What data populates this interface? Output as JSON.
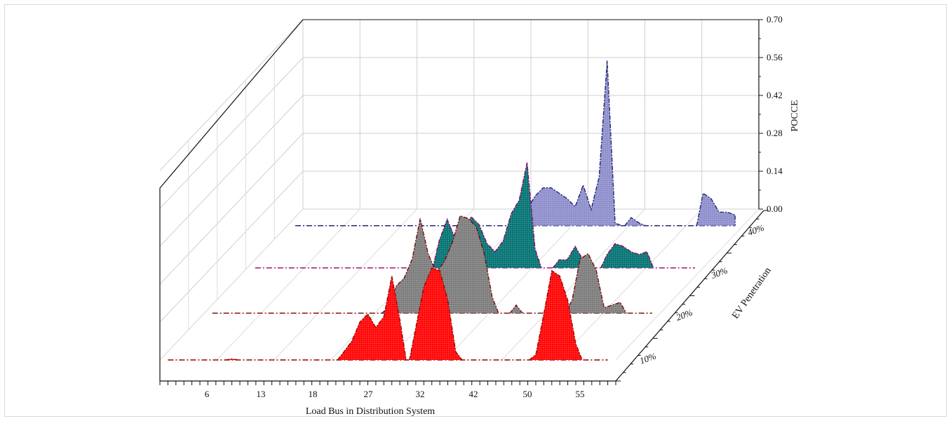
{
  "chart_data": {
    "type": "area",
    "xlabel": "Load Bus in Distribution System",
    "ylabel": "EV Penetration",
    "zlabel": "POCCE",
    "x_ticks": [
      "6",
      "13",
      "18",
      "27",
      "32",
      "42",
      "50",
      "55"
    ],
    "z_ticks": [
      "0.00",
      "0.14",
      "0.28",
      "0.42",
      "0.56",
      "0.70"
    ],
    "zlim": [
      0,
      0.7
    ],
    "grid": true,
    "series": [
      {
        "name": "10%",
        "color": "#ff0000",
        "line_color": "#990000",
        "values": [
          [
            1,
            0
          ],
          [
            2,
            0
          ],
          [
            3,
            0
          ],
          [
            4,
            0
          ],
          [
            5,
            0
          ],
          [
            6,
            0
          ],
          [
            7,
            0
          ],
          [
            8,
            0
          ],
          [
            9,
            0.004
          ],
          [
            10,
            0
          ],
          [
            11,
            0
          ],
          [
            12,
            0
          ],
          [
            13,
            0
          ],
          [
            14,
            0
          ],
          [
            15,
            0
          ],
          [
            16,
            0
          ],
          [
            17,
            0
          ],
          [
            18,
            0
          ],
          [
            19,
            0
          ],
          [
            20,
            0
          ],
          [
            21,
            0
          ],
          [
            22,
            0
          ],
          [
            23,
            0.03
          ],
          [
            24,
            0.07
          ],
          [
            25,
            0.14
          ],
          [
            26,
            0.17
          ],
          [
            27,
            0.12
          ],
          [
            28,
            0.16
          ],
          [
            29,
            0.31
          ],
          [
            30,
            0.15
          ],
          [
            31,
            0
          ],
          [
            32,
            0.12
          ],
          [
            33,
            0.27
          ],
          [
            34,
            0.34
          ],
          [
            35,
            0.33
          ],
          [
            36,
            0.22
          ],
          [
            37,
            0.03
          ],
          [
            38,
            0
          ],
          [
            39,
            0
          ],
          [
            40,
            0
          ],
          [
            41,
            0
          ],
          [
            42,
            0
          ],
          [
            43,
            0
          ],
          [
            44,
            0
          ],
          [
            45,
            0
          ],
          [
            46,
            0
          ],
          [
            47,
            0.02
          ],
          [
            48,
            0.17
          ],
          [
            49,
            0.33
          ],
          [
            50,
            0.31
          ],
          [
            51,
            0.22
          ],
          [
            52,
            0.06
          ],
          [
            53,
            0
          ],
          [
            54,
            0
          ],
          [
            55,
            0
          ]
        ]
      },
      {
        "name": "20%",
        "color": "#7a7a7a",
        "line_color": "#7a0000",
        "values": [
          [
            1,
            0
          ],
          [
            2,
            0
          ],
          [
            3,
            0
          ],
          [
            4,
            0
          ],
          [
            5,
            0
          ],
          [
            6,
            0
          ],
          [
            7,
            0
          ],
          [
            8,
            0
          ],
          [
            9,
            0
          ],
          [
            10,
            0
          ],
          [
            11,
            0
          ],
          [
            12,
            0
          ],
          [
            13,
            0
          ],
          [
            14,
            0
          ],
          [
            15,
            0
          ],
          [
            16,
            0
          ],
          [
            17,
            0
          ],
          [
            18,
            0
          ],
          [
            19,
            0
          ],
          [
            20,
            0
          ],
          [
            21,
            0
          ],
          [
            22,
            0
          ],
          [
            23,
            0.02
          ],
          [
            24,
            0.1
          ],
          [
            25,
            0.13
          ],
          [
            26,
            0.2
          ],
          [
            27,
            0.35
          ],
          [
            28,
            0.22
          ],
          [
            29,
            0.15
          ],
          [
            30,
            0.19
          ],
          [
            31,
            0.26
          ],
          [
            32,
            0.36
          ],
          [
            33,
            0.35
          ],
          [
            34,
            0.32
          ],
          [
            35,
            0.22
          ],
          [
            36,
            0.06
          ],
          [
            37,
            0
          ],
          [
            38,
            0
          ],
          [
            39,
            0.03
          ],
          [
            40,
            0
          ],
          [
            41,
            0
          ],
          [
            42,
            0
          ],
          [
            43,
            0
          ],
          [
            44,
            0
          ],
          [
            45,
            0
          ],
          [
            46,
            0.05
          ],
          [
            47,
            0.2
          ],
          [
            48,
            0.22
          ],
          [
            49,
            0.16
          ],
          [
            50,
            0.02
          ],
          [
            51,
            0.03
          ],
          [
            52,
            0.04
          ],
          [
            53,
            0
          ],
          [
            54,
            0
          ],
          [
            55,
            0
          ]
        ]
      },
      {
        "name": "30%",
        "color": "#007070",
        "line_color": "#990066",
        "values": [
          [
            1,
            0
          ],
          [
            2,
            0
          ],
          [
            3,
            0
          ],
          [
            4,
            0
          ],
          [
            5,
            0
          ],
          [
            6,
            0
          ],
          [
            7,
            0
          ],
          [
            8,
            0
          ],
          [
            9,
            0
          ],
          [
            10,
            0
          ],
          [
            11,
            0
          ],
          [
            12,
            0
          ],
          [
            13,
            0
          ],
          [
            14,
            0
          ],
          [
            15,
            0
          ],
          [
            16,
            0
          ],
          [
            17,
            0
          ],
          [
            18,
            0
          ],
          [
            19,
            0
          ],
          [
            20,
            0
          ],
          [
            21,
            0
          ],
          [
            22,
            0
          ],
          [
            23,
            0
          ],
          [
            24,
            0.1
          ],
          [
            25,
            0.18
          ],
          [
            26,
            0.11
          ],
          [
            27,
            0.12
          ],
          [
            28,
            0.19
          ],
          [
            29,
            0.16
          ],
          [
            30,
            0.09
          ],
          [
            31,
            0.06
          ],
          [
            32,
            0.1
          ],
          [
            33,
            0.2
          ],
          [
            34,
            0.25
          ],
          [
            35,
            0.39
          ],
          [
            36,
            0.07
          ],
          [
            37,
            0
          ],
          [
            38,
            0
          ],
          [
            39,
            0.03
          ],
          [
            40,
            0.03
          ],
          [
            41,
            0.08
          ],
          [
            42,
            0.03
          ],
          [
            43,
            0
          ],
          [
            44,
            0
          ],
          [
            45,
            0.05
          ],
          [
            46,
            0.09
          ],
          [
            47,
            0.08
          ],
          [
            48,
            0.06
          ],
          [
            49,
            0.05
          ],
          [
            50,
            0.06
          ],
          [
            51,
            0
          ],
          [
            52,
            0
          ],
          [
            53,
            0
          ],
          [
            54,
            0
          ],
          [
            55,
            0
          ]
        ]
      },
      {
        "name": "40%",
        "color": "#8c8ccc",
        "line_color": "#1a1a66",
        "values": [
          [
            1,
            0
          ],
          [
            2,
            0
          ],
          [
            3,
            0
          ],
          [
            4,
            0
          ],
          [
            5,
            0
          ],
          [
            6,
            0
          ],
          [
            7,
            0
          ],
          [
            8,
            0
          ],
          [
            9,
            0
          ],
          [
            10,
            0
          ],
          [
            11,
            0
          ],
          [
            12,
            0
          ],
          [
            13,
            0
          ],
          [
            14,
            0
          ],
          [
            15,
            0
          ],
          [
            16,
            0
          ],
          [
            17,
            0
          ],
          [
            18,
            0
          ],
          [
            19,
            0
          ],
          [
            20,
            0
          ],
          [
            21,
            0
          ],
          [
            22,
            0
          ],
          [
            23,
            0
          ],
          [
            24,
            0
          ],
          [
            25,
            0
          ],
          [
            26,
            0
          ],
          [
            27,
            0
          ],
          [
            28,
            0
          ],
          [
            29,
            0
          ],
          [
            30,
            0.06
          ],
          [
            31,
            0.11
          ],
          [
            32,
            0.14
          ],
          [
            33,
            0.14
          ],
          [
            34,
            0.12
          ],
          [
            35,
            0.1
          ],
          [
            36,
            0.07
          ],
          [
            37,
            0.15
          ],
          [
            38,
            0.06
          ],
          [
            39,
            0.18
          ],
          [
            40,
            0.61
          ],
          [
            41,
            0.01
          ],
          [
            42,
            0
          ],
          [
            43,
            0.03
          ],
          [
            44,
            0.01
          ],
          [
            45,
            0
          ],
          [
            46,
            0
          ],
          [
            47,
            0
          ],
          [
            48,
            0
          ],
          [
            49,
            0
          ],
          [
            50,
            0
          ],
          [
            51,
            0
          ],
          [
            52,
            0.12
          ],
          [
            53,
            0.1
          ],
          [
            54,
            0.05
          ],
          [
            55,
            0.05
          ],
          [
            56,
            0.04
          ]
        ]
      }
    ]
  }
}
